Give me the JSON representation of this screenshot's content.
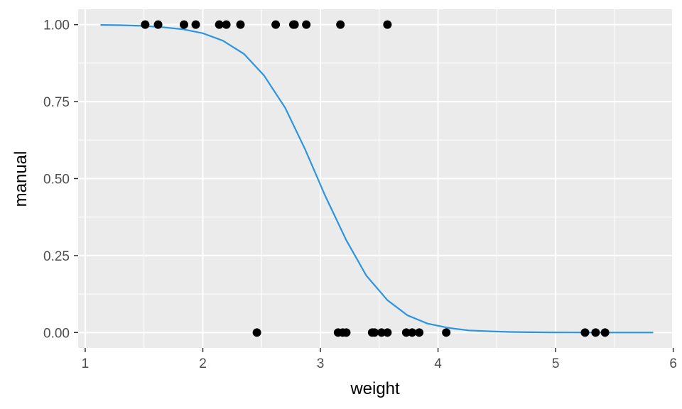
{
  "chart_data": {
    "type": "scatter",
    "xlabel": "weight",
    "ylabel": "manual",
    "xlim": [
      0.94,
      5.99
    ],
    "ylim": [
      -0.05,
      1.05
    ],
    "x_ticks": [
      1,
      2,
      3,
      4,
      5,
      6
    ],
    "y_ticks": [
      0.0,
      0.25,
      0.5,
      0.75,
      1.0
    ],
    "x_tick_labels": [
      "1",
      "2",
      "3",
      "4",
      "5",
      "6"
    ],
    "y_tick_labels": [
      "0.00",
      "0.25",
      "0.50",
      "0.75",
      "1.00"
    ],
    "grid": true,
    "background": "#ebebeb",
    "grid_color": "#ffffff",
    "point_color": "#000000",
    "curve_color": "#2b95e0",
    "points": [
      {
        "x": 1.51,
        "y": 1
      },
      {
        "x": 1.62,
        "y": 1
      },
      {
        "x": 1.84,
        "y": 1
      },
      {
        "x": 1.94,
        "y": 1
      },
      {
        "x": 2.14,
        "y": 1
      },
      {
        "x": 2.2,
        "y": 1
      },
      {
        "x": 2.32,
        "y": 1
      },
      {
        "x": 2.62,
        "y": 1
      },
      {
        "x": 2.77,
        "y": 1
      },
      {
        "x": 2.78,
        "y": 1
      },
      {
        "x": 2.88,
        "y": 1
      },
      {
        "x": 3.17,
        "y": 1
      },
      {
        "x": 3.57,
        "y": 1
      },
      {
        "x": 2.46,
        "y": 0
      },
      {
        "x": 3.15,
        "y": 0
      },
      {
        "x": 3.19,
        "y": 0
      },
      {
        "x": 3.22,
        "y": 0
      },
      {
        "x": 3.44,
        "y": 0
      },
      {
        "x": 3.46,
        "y": 0
      },
      {
        "x": 3.52,
        "y": 0
      },
      {
        "x": 3.57,
        "y": 0
      },
      {
        "x": 3.73,
        "y": 0
      },
      {
        "x": 3.78,
        "y": 0
      },
      {
        "x": 3.84,
        "y": 0
      },
      {
        "x": 4.07,
        "y": 0
      },
      {
        "x": 5.25,
        "y": 0
      },
      {
        "x": 5.34,
        "y": 0
      },
      {
        "x": 5.42,
        "y": 0
      }
    ],
    "series": [
      {
        "x": [
          1.13,
          1.3,
          1.48,
          1.65,
          1.83,
          2.0,
          2.17,
          2.35,
          2.52,
          2.7,
          2.87,
          3.04,
          3.22,
          3.39,
          3.57,
          3.74,
          3.91,
          4.09,
          4.26,
          4.44,
          4.61,
          4.78,
          4.96,
          5.13,
          5.31,
          5.48,
          5.65,
          5.83
        ],
        "y": [
          0.999,
          0.998,
          0.996,
          0.992,
          0.985,
          0.972,
          0.948,
          0.905,
          0.835,
          0.73,
          0.595,
          0.445,
          0.3,
          0.185,
          0.105,
          0.056,
          0.029,
          0.015,
          0.007,
          0.004,
          0.002,
          0.001,
          0.0005,
          0.0003,
          0.0001,
          0.0001,
          0.0,
          0.0
        ]
      }
    ]
  }
}
